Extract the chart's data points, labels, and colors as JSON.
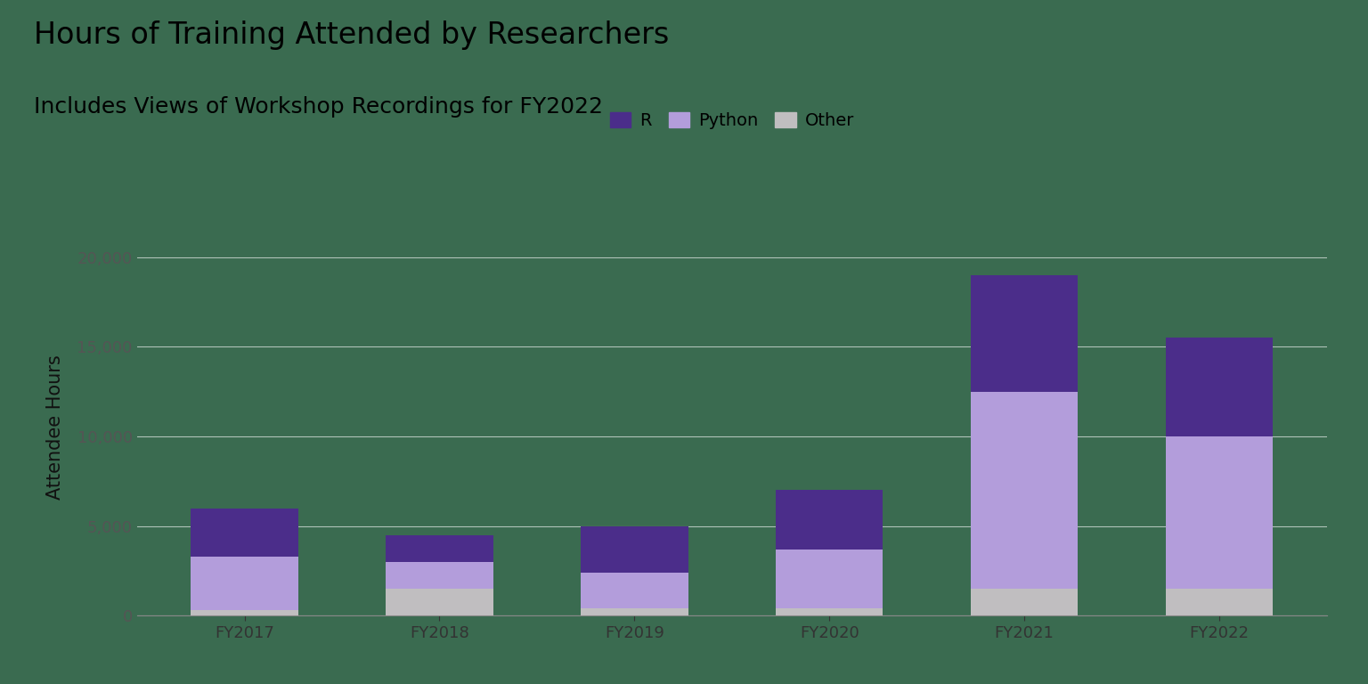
{
  "title": "Hours of Training Attended by Researchers",
  "subtitle": "Includes Views of Workshop Recordings for FY2022",
  "ylabel": "Attendee Hours",
  "categories": [
    "FY2017",
    "FY2018",
    "FY2019",
    "FY2020",
    "FY2021",
    "FY2022"
  ],
  "other": [
    300,
    1500,
    400,
    400,
    1500,
    1500
  ],
  "python": [
    3000,
    1500,
    2000,
    3300,
    11000,
    8500
  ],
  "r": [
    2700,
    1500,
    2600,
    3300,
    6500,
    5500
  ],
  "color_r": "#4B2D8A",
  "color_python": "#B39DDB",
  "color_other": "#C0BEC0",
  "ylim": [
    0,
    21000
  ],
  "yticks": [
    0,
    5000,
    10000,
    15000,
    20000
  ],
  "background_color": "#3A6B50",
  "title_fontsize": 24,
  "subtitle_fontsize": 18,
  "axis_label_fontsize": 15,
  "tick_fontsize": 13,
  "legend_fontsize": 14,
  "bar_width": 0.55
}
